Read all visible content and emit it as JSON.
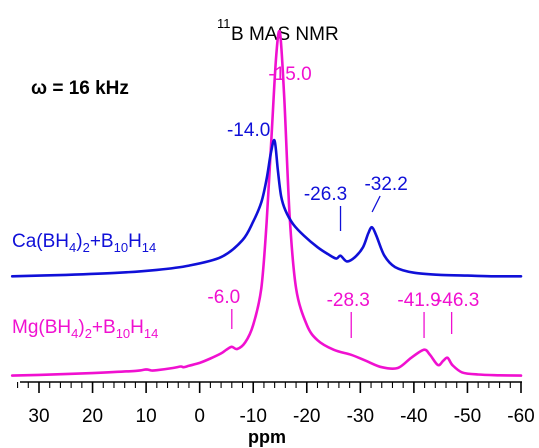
{
  "chart_data": {
    "type": "line",
    "title_sup": "11",
    "title": "B MAS NMR",
    "spin_rate": "ω = 16 kHz",
    "xlabel": "ppm",
    "xlim": [
      35,
      -60
    ],
    "x_reversed": true,
    "xticks": [
      30,
      20,
      10,
      0,
      -10,
      -20,
      -30,
      -40,
      -50,
      -60
    ],
    "xtick_labels": [
      "30",
      "20",
      "10",
      "0",
      "-10",
      "-20",
      "-30",
      "-40",
      "-50",
      "-60"
    ],
    "grid": false,
    "series": [
      {
        "name": "Ca(BH4)2+B10H14",
        "label_parts": [
          {
            "t": "Ca(BH",
            "s": "n"
          },
          {
            "t": "4",
            "s": "sub"
          },
          {
            "t": ")",
            "s": "n"
          },
          {
            "t": "2",
            "s": "sub"
          },
          {
            "t": "+B",
            "s": "n"
          },
          {
            "t": "10",
            "s": "sub"
          },
          {
            "t": "H",
            "s": "n"
          },
          {
            "t": "14",
            "s": "sub"
          }
        ],
        "color": "#1010d8",
        "x": [
          35,
          25,
          15,
          8,
          2,
          -4,
          -8,
          -10,
          -11.5,
          -12.5,
          -13.3,
          -14.0,
          -14.6,
          -15.2,
          -16,
          -17.5,
          -19.5,
          -22,
          -24,
          -25.5,
          -26.3,
          -27.5,
          -29,
          -30.5,
          -31.5,
          -32.2,
          -33,
          -34.5,
          -36.5,
          -40,
          -45,
          -50,
          -55,
          -60
        ],
        "y": [
          0.01,
          0.03,
          0.06,
          0.1,
          0.16,
          0.28,
          0.52,
          0.78,
          1.05,
          1.38,
          1.75,
          1.92,
          1.5,
          1.14,
          0.94,
          0.74,
          0.58,
          0.42,
          0.32,
          0.26,
          0.3,
          0.22,
          0.28,
          0.42,
          0.62,
          0.7,
          0.58,
          0.3,
          0.14,
          0.06,
          0.03,
          0.02,
          0.01,
          0.01
        ],
        "annotations": [
          {
            "x": -14.0,
            "label": "-14.0"
          },
          {
            "x": -26.3,
            "label": "-26.3"
          },
          {
            "x": -32.2,
            "label": "-32.2"
          }
        ]
      },
      {
        "name": "Mg(BH4)2+B10H14",
        "label_parts": [
          {
            "t": "Mg(BH",
            "s": "n"
          },
          {
            "t": "4",
            "s": "sub"
          },
          {
            "t": ")",
            "s": "n"
          },
          {
            "t": "2",
            "s": "sub"
          },
          {
            "t": "+B",
            "s": "n"
          },
          {
            "t": "10",
            "s": "sub"
          },
          {
            "t": "H",
            "s": "n"
          },
          {
            "t": "14",
            "s": "sub"
          }
        ],
        "color": "#f010d0",
        "x": [
          35,
          30,
          20,
          12,
          10,
          9,
          8,
          5,
          3.5,
          3,
          2,
          0,
          -2,
          -4,
          -5,
          -6.0,
          -7,
          -8.5,
          -10,
          -11.5,
          -12.5,
          -13.5,
          -14.3,
          -15.0,
          -15.8,
          -16.8,
          -18,
          -20,
          -22,
          -25,
          -28.3,
          -31,
          -34,
          -37,
          -39.5,
          -41.9,
          -43,
          -44.5,
          -45.5,
          -46.3,
          -47.2,
          -49,
          -52,
          -56,
          -60
        ],
        "y": [
          0.01,
          0.03,
          0.08,
          0.14,
          0.18,
          0.15,
          0.16,
          0.22,
          0.26,
          0.24,
          0.28,
          0.36,
          0.48,
          0.62,
          0.72,
          0.8,
          0.74,
          0.92,
          1.4,
          2.4,
          4.2,
          6.8,
          8.8,
          9.4,
          7.6,
          4.4,
          2.4,
          1.4,
          0.98,
          0.72,
          0.58,
          0.42,
          0.24,
          0.22,
          0.5,
          0.72,
          0.58,
          0.3,
          0.42,
          0.5,
          0.3,
          0.1,
          0.04,
          0.02,
          0.01
        ],
        "annotations": [
          {
            "x": -6.0,
            "label": "-6.0"
          },
          {
            "x": -15.0,
            "label": "-15.0"
          },
          {
            "x": -28.3,
            "label": "-28.3"
          },
          {
            "x": -41.9,
            "label": "-41.9"
          },
          {
            "x": -46.3,
            "label": "-46.3"
          }
        ]
      }
    ]
  }
}
